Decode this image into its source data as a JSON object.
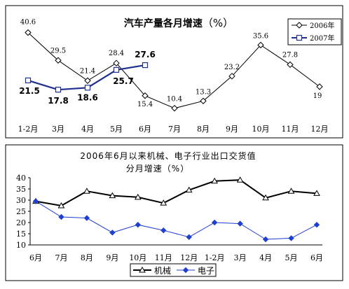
{
  "chart_data": [
    {
      "type": "line",
      "title": "汽车产量各月增速（%）",
      "title_main": "汽车产量各月增速",
      "title_unit": "（%）",
      "categories": [
        "1-2月",
        "3月",
        "4月",
        "5月",
        "6月",
        "7月",
        "8月",
        "9月",
        "10月",
        "11月",
        "12月"
      ],
      "series": [
        {
          "name": "2006年",
          "values": [
            40.6,
            29.5,
            21.4,
            28.4,
            15.4,
            10.4,
            13.3,
            23.2,
            35.6,
            27.8,
            19
          ],
          "color": "#000000",
          "marker": "diamond-open"
        },
        {
          "name": "2007年",
          "values": [
            21.5,
            17.8,
            18.6,
            25.7,
            27.6,
            null,
            null,
            null,
            null,
            null,
            null
          ],
          "color": "#1f2f8f",
          "marker": "square-open"
        }
      ],
      "ylim": [
        5,
        48
      ],
      "grid": false,
      "legend": "top-right",
      "data_labels": true
    },
    {
      "type": "line",
      "title": "2006年6月以来机械、电子行业出口交货值分月增速（%）",
      "title_line1": "2006年6月以来机械、电子行业出口交货值",
      "title_line2": "分月增速（%）",
      "categories": [
        "6月",
        "7月",
        "8月",
        "9月",
        "10月",
        "11月",
        "12月",
        "1-2月",
        "3月",
        "4月",
        "5月",
        "6月"
      ],
      "series": [
        {
          "name": "机械",
          "values": [
            29.5,
            27.5,
            34,
            32,
            31.3,
            28.7,
            34.5,
            38.5,
            39,
            31,
            34,
            33
          ],
          "color": "#000000",
          "marker": "triangle-open"
        },
        {
          "name": "电子",
          "values": [
            29.5,
            22.5,
            22,
            15.5,
            19,
            16.5,
            13.5,
            20,
            19.5,
            12.5,
            13,
            19
          ],
          "color": "#1f3fd0",
          "marker": "diamond-filled"
        }
      ],
      "yticks": [
        10,
        15,
        20,
        25,
        30,
        35,
        40
      ],
      "ylim": [
        10,
        40
      ],
      "grid": false,
      "legend": "bottom",
      "data_labels": false
    }
  ]
}
